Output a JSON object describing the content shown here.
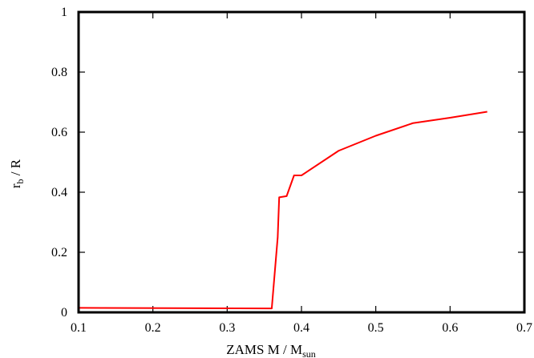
{
  "chart_data": {
    "type": "line",
    "title": "",
    "xlabel": {
      "text": "ZAMS M / M",
      "sub": "sun"
    },
    "ylabel": {
      "text_pre": "r",
      "sub": "b",
      "text_post": " / R"
    },
    "xlim": [
      0.1,
      0.7
    ],
    "ylim": [
      0,
      1
    ],
    "xticks": [
      0.1,
      0.2,
      0.3,
      0.4,
      0.5,
      0.6,
      0.7
    ],
    "xtick_labels": [
      "0.1",
      "0.2",
      "0.3",
      "0.4",
      "0.5",
      "0.6",
      "0.7"
    ],
    "yticks": [
      0,
      0.2,
      0.4,
      0.6,
      0.8,
      1
    ],
    "ytick_labels": [
      "0",
      "0.2",
      "0.4",
      "0.6",
      "0.8",
      "1"
    ],
    "grid": false,
    "legend": "none",
    "series": [
      {
        "color": "#ff0000",
        "x": [
          0.1,
          0.36,
          0.368,
          0.37,
          0.38,
          0.39,
          0.4,
          0.45,
          0.5,
          0.55,
          0.6,
          0.65
        ],
        "y": [
          0.015,
          0.013,
          0.25,
          0.383,
          0.387,
          0.456,
          0.456,
          0.538,
          0.588,
          0.63,
          0.648,
          0.668
        ]
      }
    ]
  }
}
